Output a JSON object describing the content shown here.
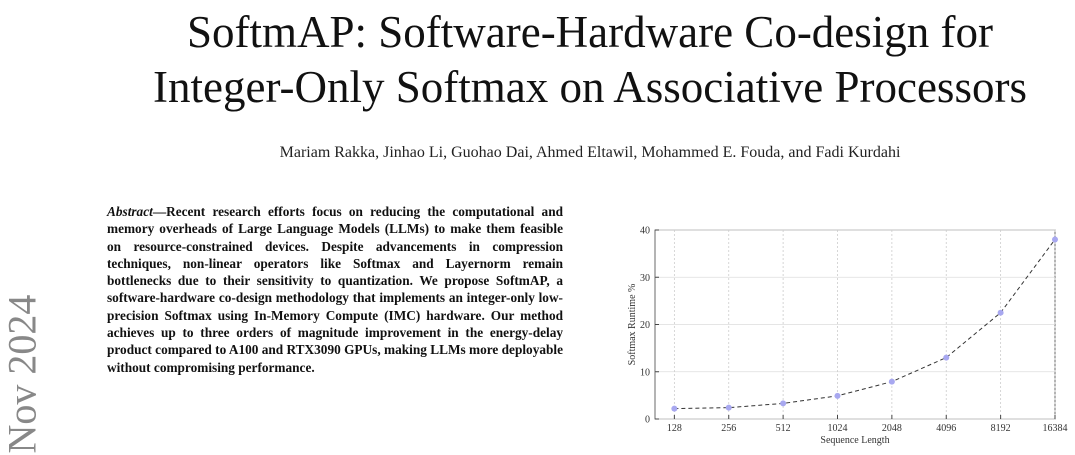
{
  "title": [
    "SoftmAP: Software-Hardware Co-design for",
    "Integer-Only Softmax on Associative Processors"
  ],
  "authors": "Mariam Rakka, Jinhao Li, Guohao Dai, Ahmed Eltawil, Mohammed E. Fouda, and Fadi Kurdahi",
  "side_stamp": "Nov 2024",
  "abstract": {
    "label": "Abstract",
    "text": "—Recent research efforts focus on reducing the computational and memory overheads of Large Language Models (LLMs) to make them feasible on resource-constrained devices. Despite advancements in compression techniques, non-linear operators like Softmax and Layernorm remain bottlenecks due to their sensitivity to quantization. We propose SoftmAP, a software-hardware co-design methodology that implements an integer-only low-precision Softmax using In-Memory Compute (IMC) hardware. Our method achieves up to three orders of magnitude improvement in the energy-delay product compared to A100 and RTX3090 GPUs, making LLMs more deployable without compromising performance."
  },
  "chart_data": {
    "type": "line",
    "xlabel": "Sequence Length",
    "ylabel": "Softmax Runtime %",
    "x": [
      128,
      256,
      512,
      1024,
      2048,
      4096,
      8192,
      16384
    ],
    "values": [
      2.2,
      2.4,
      3.3,
      4.9,
      7.9,
      13,
      22.5,
      38
    ],
    "line_color": "#333333",
    "marker_color": "#a8a8f0",
    "xscale": "log",
    "xlim": [
      100,
      16384
    ],
    "ylim": [
      0,
      40
    ],
    "xticks": [
      128,
      256,
      512,
      1024,
      2048,
      4096,
      8192,
      16384
    ],
    "yticks": [
      0,
      10,
      20,
      30,
      40
    ],
    "grid": true
  }
}
